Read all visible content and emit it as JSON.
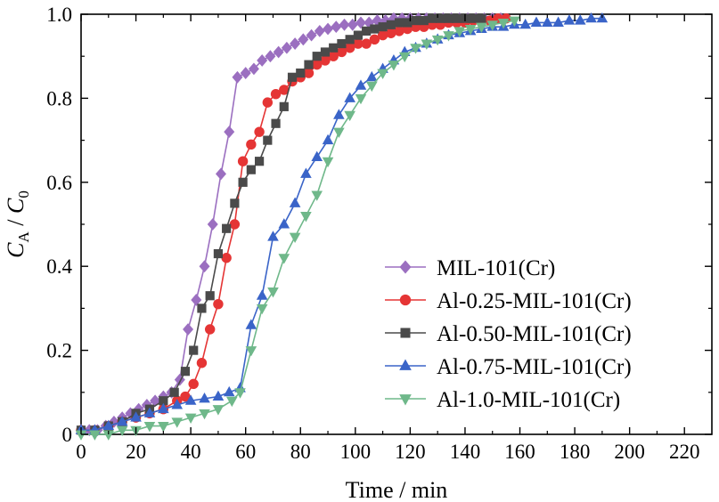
{
  "chart_data": {
    "type": "line",
    "title": "",
    "xlabel": "Time / min",
    "ylabel": {
      "main": "C",
      "sub1": "A",
      "sep": " / ",
      "main2": "C",
      "sub2": "0"
    },
    "xlim": [
      0,
      230
    ],
    "ylim": [
      0,
      1.0
    ],
    "x_ticks": [
      0,
      20,
      40,
      60,
      80,
      100,
      120,
      140,
      160,
      180,
      200,
      220
    ],
    "y_ticks": [
      0,
      0.2,
      0.4,
      0.6,
      0.8,
      1.0
    ],
    "x_tick_labels": [
      "0",
      "20",
      "40",
      "60",
      "80",
      "100",
      "120",
      "140",
      "160",
      "180",
      "200",
      "220"
    ],
    "y_tick_labels": [
      "0",
      "0.2",
      "0.4",
      "0.6",
      "0.8",
      "1.0"
    ],
    "grid": false,
    "legend_position": "bottom-right",
    "series": [
      {
        "name": "MIL-101(Cr)",
        "color": "#9b6fc0",
        "marker": "diamond",
        "x": [
          0,
          3,
          6,
          9,
          12,
          15,
          18,
          21,
          24,
          27,
          30,
          33,
          36,
          39,
          42,
          45,
          48,
          51,
          54,
          57,
          60,
          63,
          66,
          69,
          72,
          75,
          78,
          81,
          84,
          87,
          90,
          93,
          96,
          99,
          102,
          105,
          108,
          111,
          114,
          117,
          120,
          123,
          126,
          129,
          132,
          135,
          138,
          141,
          144,
          147,
          150,
          153
        ],
        "y": [
          0.01,
          0.01,
          0.01,
          0.02,
          0.03,
          0.04,
          0.05,
          0.06,
          0.07,
          0.08,
          0.09,
          0.1,
          0.13,
          0.25,
          0.32,
          0.4,
          0.5,
          0.62,
          0.72,
          0.85,
          0.86,
          0.87,
          0.89,
          0.9,
          0.91,
          0.92,
          0.93,
          0.94,
          0.95,
          0.96,
          0.965,
          0.97,
          0.975,
          0.975,
          0.98,
          0.98,
          0.985,
          0.985,
          0.99,
          0.99,
          0.99,
          0.99,
          0.99,
          0.99,
          0.99,
          0.99,
          0.99,
          0.99,
          0.99,
          0.99,
          0.99,
          0.99
        ]
      },
      {
        "name": "Al-0.25-MIL-101(Cr)",
        "color": "#e53535",
        "marker": "circle",
        "x": [
          0,
          5,
          10,
          15,
          20,
          25,
          30,
          35,
          38,
          41,
          44,
          47,
          50,
          53,
          56,
          59,
          62,
          65,
          68,
          71,
          74,
          77,
          80,
          83,
          86,
          89,
          92,
          95,
          98,
          101,
          104,
          107,
          110,
          113,
          116,
          119,
          122,
          125,
          128,
          131,
          134,
          137,
          140,
          143,
          146,
          149,
          152,
          155
        ],
        "y": [
          0.01,
          0.01,
          0.02,
          0.03,
          0.04,
          0.05,
          0.06,
          0.08,
          0.09,
          0.12,
          0.17,
          0.25,
          0.31,
          0.42,
          0.5,
          0.65,
          0.69,
          0.72,
          0.79,
          0.81,
          0.82,
          0.84,
          0.85,
          0.86,
          0.88,
          0.89,
          0.9,
          0.91,
          0.92,
          0.93,
          0.93,
          0.94,
          0.95,
          0.955,
          0.96,
          0.965,
          0.97,
          0.97,
          0.975,
          0.975,
          0.98,
          0.98,
          0.98,
          0.985,
          0.985,
          0.985,
          0.99,
          0.99
        ]
      },
      {
        "name": "Al-0.50-MIL-101(Cr)",
        "color": "#4a4a4a",
        "marker": "square",
        "x": [
          0,
          5,
          10,
          15,
          20,
          25,
          30,
          34,
          38,
          41,
          44,
          47,
          50,
          53,
          56,
          59,
          62,
          65,
          68,
          71,
          74,
          77,
          80,
          83,
          86,
          89,
          92,
          95,
          98,
          101,
          104,
          107,
          110,
          113,
          116,
          119,
          122,
          125,
          128,
          131,
          134,
          137,
          140,
          143,
          146
        ],
        "y": [
          0.01,
          0.01,
          0.02,
          0.03,
          0.05,
          0.06,
          0.08,
          0.1,
          0.15,
          0.2,
          0.3,
          0.33,
          0.43,
          0.49,
          0.55,
          0.6,
          0.63,
          0.65,
          0.7,
          0.74,
          0.78,
          0.85,
          0.86,
          0.88,
          0.9,
          0.91,
          0.92,
          0.93,
          0.94,
          0.95,
          0.96,
          0.965,
          0.97,
          0.975,
          0.98,
          0.98,
          0.985,
          0.985,
          0.99,
          0.99,
          0.99,
          0.99,
          0.99,
          0.99,
          0.99
        ]
      },
      {
        "name": "Al-0.75-MIL-101(Cr)",
        "color": "#3a64c8",
        "marker": "triangle-up",
        "x": [
          0,
          5,
          10,
          15,
          20,
          25,
          30,
          35,
          40,
          45,
          50,
          54,
          58,
          62,
          66,
          70,
          74,
          78,
          82,
          86,
          90,
          94,
          98,
          102,
          106,
          110,
          114,
          118,
          122,
          126,
          130,
          134,
          138,
          142,
          146,
          150,
          154,
          158,
          162,
          166,
          170,
          174,
          178,
          182,
          186,
          190
        ],
        "y": [
          0.01,
          0.01,
          0.02,
          0.03,
          0.04,
          0.05,
          0.06,
          0.07,
          0.08,
          0.085,
          0.09,
          0.1,
          0.11,
          0.26,
          0.33,
          0.47,
          0.5,
          0.55,
          0.62,
          0.66,
          0.7,
          0.76,
          0.8,
          0.83,
          0.85,
          0.87,
          0.89,
          0.91,
          0.92,
          0.93,
          0.94,
          0.95,
          0.955,
          0.96,
          0.965,
          0.97,
          0.97,
          0.975,
          0.975,
          0.98,
          0.98,
          0.98,
          0.985,
          0.985,
          0.99,
          0.99
        ]
      },
      {
        "name": "Al-1.0-MIL-101(Cr)",
        "color": "#6fb88a",
        "marker": "triangle-down",
        "x": [
          0,
          5,
          10,
          15,
          20,
          25,
          30,
          35,
          40,
          45,
          50,
          55,
          58,
          62,
          66,
          70,
          74,
          78,
          82,
          86,
          90,
          94,
          98,
          102,
          106,
          110,
          114,
          118,
          122,
          126,
          130,
          134,
          138,
          142,
          146,
          150,
          154,
          158
        ],
        "y": [
          0.0,
          0.0,
          0.0,
          0.01,
          0.01,
          0.02,
          0.02,
          0.03,
          0.04,
          0.05,
          0.06,
          0.08,
          0.1,
          0.2,
          0.3,
          0.34,
          0.42,
          0.47,
          0.52,
          0.57,
          0.65,
          0.72,
          0.76,
          0.8,
          0.83,
          0.86,
          0.88,
          0.9,
          0.92,
          0.93,
          0.94,
          0.95,
          0.96,
          0.965,
          0.97,
          0.975,
          0.98,
          0.985
        ]
      }
    ]
  }
}
